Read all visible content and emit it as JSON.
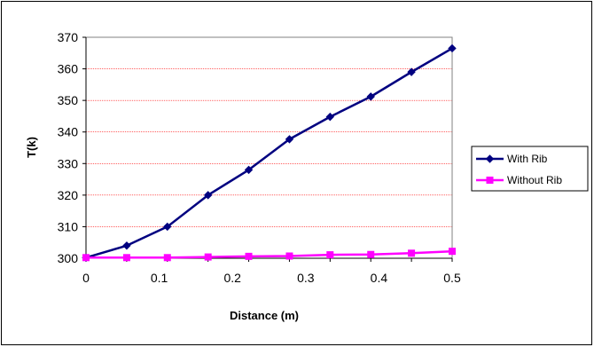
{
  "chart_data": {
    "type": "line",
    "title": "",
    "xlabel": "Distance (m)",
    "ylabel": "T(k)",
    "xlim": [
      0,
      0.5
    ],
    "ylim": [
      300,
      370
    ],
    "x_ticks": [
      0,
      0.1,
      0.2,
      0.3,
      0.4,
      0.5
    ],
    "y_ticks": [
      300,
      310,
      320,
      330,
      340,
      350,
      360,
      370
    ],
    "x_tick_labels": [
      "0",
      "0.1",
      "0.2",
      "0.3",
      "0.4",
      "0.5"
    ],
    "y_tick_labels": [
      "300",
      "310",
      "320",
      "330",
      "340",
      "350",
      "360",
      "370"
    ],
    "grid": "horizontal",
    "legend_position": "right",
    "series": [
      {
        "name": "With Rib",
        "color": "#000080",
        "marker": "diamond",
        "x": [
          0,
          0.0556,
          0.1111,
          0.1667,
          0.2222,
          0.2778,
          0.3333,
          0.3889,
          0.4444,
          0.5
        ],
        "y": [
          300.2,
          304,
          310,
          320,
          328,
          337.7,
          344.8,
          351.2,
          359,
          366.5
        ]
      },
      {
        "name": "Without Rib",
        "color": "#FF00FF",
        "marker": "square",
        "x": [
          0,
          0.0556,
          0.1111,
          0.1667,
          0.2222,
          0.2778,
          0.3333,
          0.3889,
          0.4444,
          0.5
        ],
        "y": [
          300.2,
          300.2,
          300.2,
          300.4,
          300.6,
          300.7,
          301.1,
          301.2,
          301.6,
          302.2
        ]
      }
    ]
  }
}
